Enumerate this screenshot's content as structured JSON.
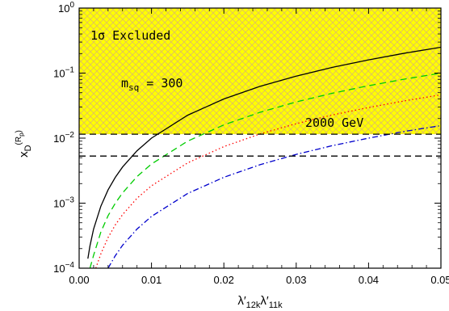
{
  "chart_data": {
    "type": "line",
    "xlabel": "λ′₁₂ₖλ′₁₁ₖ",
    "xlabel_parts": {
      "base1": "λ′",
      "sub1": "12k",
      "base2": "λ′",
      "sub2": "11k"
    },
    "ylabel_parts": {
      "base": "x",
      "sub": "D",
      "sup": "(R",
      "sup_sub": "p",
      "sup_close": ")"
    },
    "x_scale": "linear",
    "y_scale": "log",
    "xlim": [
      0,
      0.05
    ],
    "ylim": [
      0.0001,
      1
    ],
    "x_ticks": [
      {
        "value": 0,
        "label": "0.00"
      },
      {
        "value": 0.01,
        "label": "0.01"
      },
      {
        "value": 0.02,
        "label": "0.02"
      },
      {
        "value": 0.03,
        "label": "0.03"
      },
      {
        "value": 0.04,
        "label": "0.04"
      },
      {
        "value": 0.05,
        "label": "0.05"
      }
    ],
    "y_ticks": [
      {
        "value": 0.0001,
        "base": "10",
        "exp": "−4"
      },
      {
        "value": 0.001,
        "base": "10",
        "exp": "−3"
      },
      {
        "value": 0.01,
        "base": "10",
        "exp": "−2"
      },
      {
        "value": 0.1,
        "base": "10",
        "exp": "−1"
      },
      {
        "value": 1,
        "base": "10",
        "exp": "0"
      }
    ],
    "excluded_region": {
      "y_from": 0.0115,
      "y_to": 1,
      "fill": "#ffff00",
      "hatch": "#e0c060",
      "label_main": "1σ Excluded"
    },
    "series": [
      {
        "color": "#000000",
        "dash": "solid",
        "x": [
          0.0012,
          0.0015,
          0.002,
          0.003,
          0.004,
          0.005,
          0.006,
          0.008,
          0.01,
          0.015,
          0.02,
          0.025,
          0.03,
          0.035,
          0.04,
          0.045,
          0.05
        ],
        "y": [
          0.00014,
          0.00022,
          0.0004,
          0.0009,
          0.0016,
          0.0025,
          0.0036,
          0.0064,
          0.01,
          0.0225,
          0.04,
          0.0625,
          0.09,
          0.1225,
          0.16,
          0.2025,
          0.25
        ]
      },
      {
        "color": "#00cc00",
        "dash": "long-dash",
        "x": [
          0.0015,
          0.002,
          0.003,
          0.004,
          0.005,
          0.006,
          0.008,
          0.01,
          0.015,
          0.02,
          0.025,
          0.03,
          0.035,
          0.04,
          0.045,
          0.05
        ],
        "y": [
          0.0001,
          0.000158,
          0.00036,
          0.00064,
          0.001,
          0.00144,
          0.00256,
          0.004,
          0.009,
          0.016,
          0.025,
          0.036,
          0.049,
          0.064,
          0.081,
          0.1
        ]
      },
      {
        "color": "#ff0000",
        "dash": "dotted",
        "x": [
          0.0023,
          0.003,
          0.004,
          0.005,
          0.006,
          0.008,
          0.01,
          0.015,
          0.02,
          0.025,
          0.03,
          0.035,
          0.04,
          0.045,
          0.05
        ],
        "y": [
          0.0001,
          0.000166,
          0.000296,
          0.000463,
          0.000667,
          0.00119,
          0.00185,
          0.00417,
          0.0074,
          0.0116,
          0.0167,
          0.0227,
          0.0296,
          0.0375,
          0.0463
        ]
      },
      {
        "color": "#0000cc",
        "dash": "dash-dot",
        "x": [
          0.004,
          0.005,
          0.006,
          0.008,
          0.01,
          0.015,
          0.02,
          0.025,
          0.03,
          0.035,
          0.04,
          0.045,
          0.05
        ],
        "y": [
          0.0001,
          0.000156,
          0.000225,
          0.0004,
          0.000625,
          0.00141,
          0.0025,
          0.0039,
          0.00563,
          0.00766,
          0.01,
          0.0127,
          0.0156
        ]
      }
    ],
    "reference_lines": [
      {
        "y": 0.0115,
        "color": "#000000",
        "dash": "long-dash",
        "label": "2000 GeV"
      },
      {
        "y": 0.0053,
        "color": "#000000",
        "dash": "long-dash",
        "label": ""
      }
    ],
    "annotations": [
      {
        "text_main": "m",
        "text_sub": "sq",
        "text_rest": " = 300"
      }
    ]
  }
}
